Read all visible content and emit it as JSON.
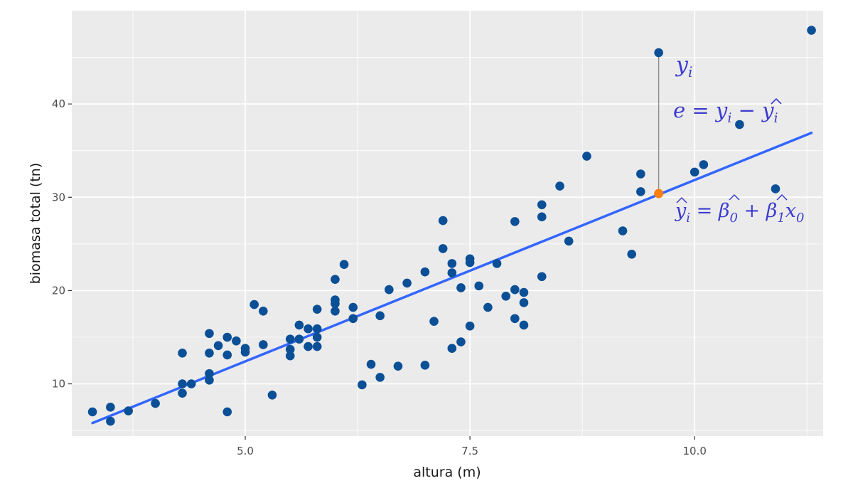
{
  "chart_data": {
    "type": "scatter",
    "xlabel": "altura (m)",
    "ylabel": "biomasa total (tn)",
    "xlim": [
      3.07,
      11.43
    ],
    "ylim": [
      4.4,
      50.0
    ],
    "xticks": [
      5.0,
      7.5,
      10.0
    ],
    "xtick_labels": [
      "5.0",
      "7.5",
      "10.0"
    ],
    "yticks": [
      10,
      20,
      30,
      40
    ],
    "ytick_labels": [
      "10",
      "20",
      "30",
      "40"
    ],
    "grid": true,
    "colors": {
      "panel": "#ebebeb",
      "grid_major": "#ffffff",
      "points": "#0b4f96",
      "fit_line": "#3366ff",
      "highlight": "#ff7f0e",
      "residual": "#8c8c8c",
      "annotation": "#3c3cd0"
    },
    "fit_line": {
      "x": [
        3.3,
        11.3
      ],
      "y": [
        5.8,
        36.9
      ]
    },
    "points": [
      {
        "x": 3.3,
        "y": 7.0
      },
      {
        "x": 3.5,
        "y": 7.5
      },
      {
        "x": 3.5,
        "y": 6.0
      },
      {
        "x": 3.7,
        "y": 7.1
      },
      {
        "x": 4.0,
        "y": 7.9
      },
      {
        "x": 4.3,
        "y": 13.3
      },
      {
        "x": 4.3,
        "y": 10.0
      },
      {
        "x": 4.3,
        "y": 9.0
      },
      {
        "x": 4.4,
        "y": 10.0
      },
      {
        "x": 4.6,
        "y": 15.4
      },
      {
        "x": 4.6,
        "y": 13.3
      },
      {
        "x": 4.6,
        "y": 11.1
      },
      {
        "x": 4.6,
        "y": 10.4
      },
      {
        "x": 4.7,
        "y": 14.1
      },
      {
        "x": 4.8,
        "y": 15.0
      },
      {
        "x": 4.8,
        "y": 13.1
      },
      {
        "x": 4.8,
        "y": 7.0
      },
      {
        "x": 4.9,
        "y": 14.6
      },
      {
        "x": 5.0,
        "y": 13.8
      },
      {
        "x": 5.0,
        "y": 13.4
      },
      {
        "x": 5.1,
        "y": 18.5
      },
      {
        "x": 5.2,
        "y": 17.8
      },
      {
        "x": 5.2,
        "y": 14.2
      },
      {
        "x": 5.3,
        "y": 8.8
      },
      {
        "x": 5.5,
        "y": 14.8
      },
      {
        "x": 5.5,
        "y": 13.7
      },
      {
        "x": 5.5,
        "y": 13.0
      },
      {
        "x": 5.6,
        "y": 16.3
      },
      {
        "x": 5.6,
        "y": 14.8
      },
      {
        "x": 5.7,
        "y": 15.9
      },
      {
        "x": 5.7,
        "y": 14.0
      },
      {
        "x": 5.8,
        "y": 18.0
      },
      {
        "x": 5.8,
        "y": 15.9
      },
      {
        "x": 5.8,
        "y": 15.0
      },
      {
        "x": 5.8,
        "y": 14.0
      },
      {
        "x": 6.0,
        "y": 21.2
      },
      {
        "x": 6.0,
        "y": 19.0
      },
      {
        "x": 6.0,
        "y": 18.6
      },
      {
        "x": 6.0,
        "y": 17.8
      },
      {
        "x": 6.1,
        "y": 22.8
      },
      {
        "x": 6.2,
        "y": 18.2
      },
      {
        "x": 6.2,
        "y": 17.0
      },
      {
        "x": 6.3,
        "y": 9.9
      },
      {
        "x": 6.4,
        "y": 12.1
      },
      {
        "x": 6.5,
        "y": 17.3
      },
      {
        "x": 6.5,
        "y": 10.7
      },
      {
        "x": 6.6,
        "y": 20.1
      },
      {
        "x": 6.7,
        "y": 11.9
      },
      {
        "x": 6.8,
        "y": 20.8
      },
      {
        "x": 7.0,
        "y": 22.0
      },
      {
        "x": 7.0,
        "y": 12.0
      },
      {
        "x": 7.1,
        "y": 16.7
      },
      {
        "x": 7.2,
        "y": 27.5
      },
      {
        "x": 7.2,
        "y": 24.5
      },
      {
        "x": 7.3,
        "y": 22.9
      },
      {
        "x": 7.3,
        "y": 21.9
      },
      {
        "x": 7.3,
        "y": 13.8
      },
      {
        "x": 7.4,
        "y": 20.3
      },
      {
        "x": 7.4,
        "y": 14.5
      },
      {
        "x": 7.5,
        "y": 23.4
      },
      {
        "x": 7.5,
        "y": 23.0
      },
      {
        "x": 7.5,
        "y": 16.2
      },
      {
        "x": 7.6,
        "y": 20.5
      },
      {
        "x": 7.7,
        "y": 18.2
      },
      {
        "x": 7.8,
        "y": 22.9
      },
      {
        "x": 7.9,
        "y": 19.4
      },
      {
        "x": 8.0,
        "y": 27.4
      },
      {
        "x": 8.0,
        "y": 20.1
      },
      {
        "x": 8.0,
        "y": 17.0
      },
      {
        "x": 8.1,
        "y": 19.8
      },
      {
        "x": 8.1,
        "y": 18.7
      },
      {
        "x": 8.1,
        "y": 16.3
      },
      {
        "x": 8.3,
        "y": 29.2
      },
      {
        "x": 8.3,
        "y": 27.9
      },
      {
        "x": 8.3,
        "y": 21.5
      },
      {
        "x": 8.5,
        "y": 31.2
      },
      {
        "x": 8.6,
        "y": 25.3
      },
      {
        "x": 8.8,
        "y": 34.4
      },
      {
        "x": 9.2,
        "y": 26.4
      },
      {
        "x": 9.3,
        "y": 23.9
      },
      {
        "x": 9.4,
        "y": 32.5
      },
      {
        "x": 9.4,
        "y": 30.6
      },
      {
        "x": 9.6,
        "y": 45.5
      },
      {
        "x": 10.0,
        "y": 32.7
      },
      {
        "x": 10.1,
        "y": 33.5
      },
      {
        "x": 10.5,
        "y": 37.8
      },
      {
        "x": 10.9,
        "y": 30.9
      },
      {
        "x": 11.3,
        "y": 47.9
      }
    ],
    "highlight": {
      "x": 9.6,
      "y_obs": 45.5,
      "y_hat": 30.4
    },
    "annotations": {
      "yi": {
        "base": "y",
        "sub": "i"
      },
      "residual_eq": {
        "e": "e",
        "eq": " = ",
        "y": "y",
        "sub": "i",
        "minus": " − ",
        "yhat": "y",
        "hat": "̂",
        "sub2": "i"
      },
      "fitted_eq": {
        "yhat": "y",
        "sub": "i",
        "eq": " = ",
        "b0": "β",
        "b0sub": "0",
        "plus": " + ",
        "b1": "β",
        "b1sub": "1",
        "x0": "x",
        "x0sub": "0"
      }
    }
  }
}
